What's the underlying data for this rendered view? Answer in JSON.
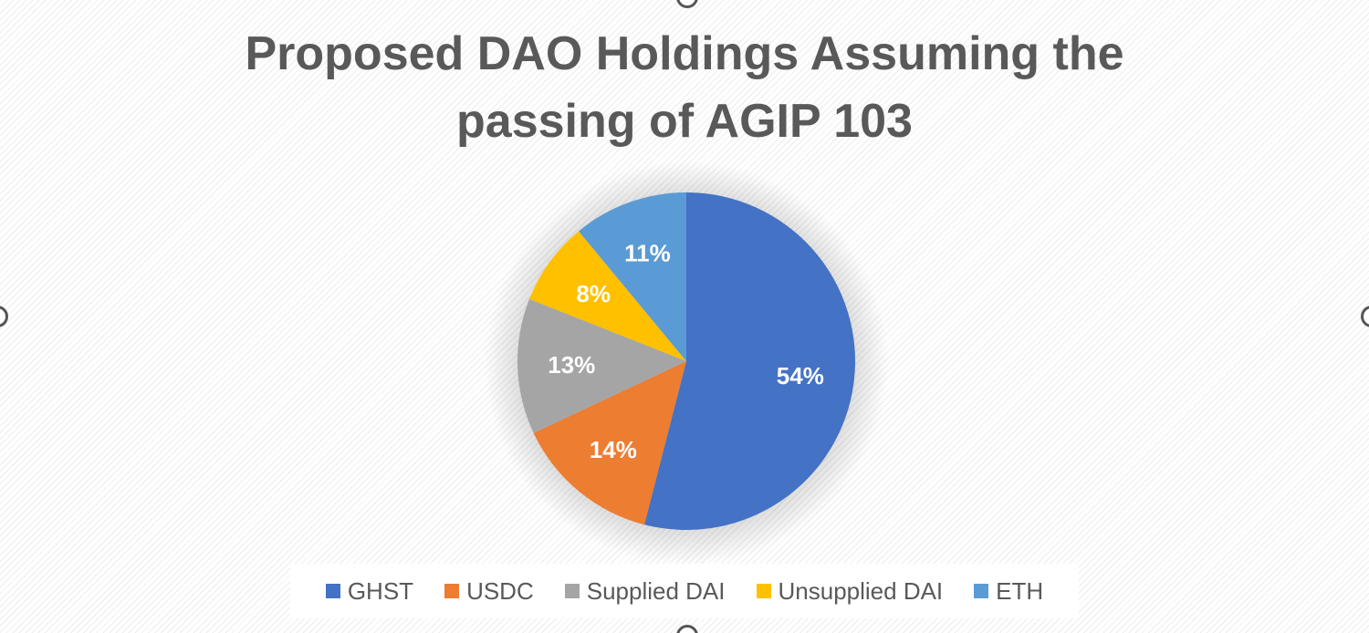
{
  "chart_data": {
    "type": "pie",
    "title": "Proposed DAO Holdings Assuming the passing of AGIP 103",
    "categories": [
      "GHST",
      "USDC",
      "Supplied DAI",
      "Unsupplied DAI",
      "ETH"
    ],
    "values": [
      54,
      14,
      13,
      8,
      11
    ],
    "data_labels": [
      "54%",
      "14%",
      "13%",
      "8%",
      "11%"
    ],
    "colors": [
      "#4472C4",
      "#ED7D31",
      "#A5A5A5",
      "#FFC000",
      "#5B9BD5"
    ],
    "legend_position": "bottom",
    "start_angle": "12 o'clock, clockwise"
  }
}
